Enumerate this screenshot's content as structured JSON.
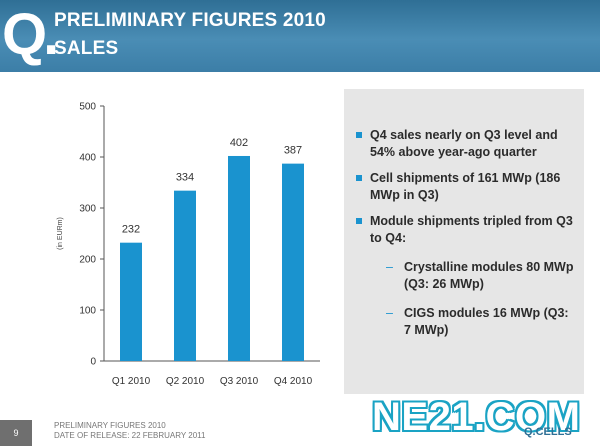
{
  "header": {
    "logo_letter": "Q",
    "logo_dot": ".",
    "title_line1": "PRELIMINARY FIGURES 2010",
    "title_line2": "SALES",
    "color": "#3c7ea7"
  },
  "chart_data": {
    "type": "bar",
    "categories": [
      "Q1 2010",
      "Q2 2010",
      "Q3 2010",
      "Q4 2010"
    ],
    "values": [
      232,
      334,
      402,
      387
    ],
    "ylabel": "(in EURm)",
    "xlabel": "",
    "ylim": [
      0,
      500
    ],
    "yticks": [
      0,
      100,
      200,
      300,
      400,
      500
    ],
    "bar_color": "#1a93cf"
  },
  "panel": {
    "bullets": [
      "Q4 sales nearly on Q3 level and 54% above year-ago quarter",
      "Cell shipments of 161 MWp (186 MWp in Q3)",
      "Module shipments tripled from Q3 to Q4:"
    ],
    "subitems": [
      "Crystalline modules 80 MWp (Q3: 26 MWp)",
      "CIGS modules 16 MWp (Q3: 7 MWp)"
    ],
    "dash": "–",
    "accent": "#1a93cf"
  },
  "footer": {
    "page_number": "9",
    "line1": "PRELIMINARY FIGURES 2010",
    "line2": "DATE OF RELEASE: 22 FEBRUARY 2011",
    "watermark": "NE21.COM",
    "brand": "Q.CELLS"
  }
}
